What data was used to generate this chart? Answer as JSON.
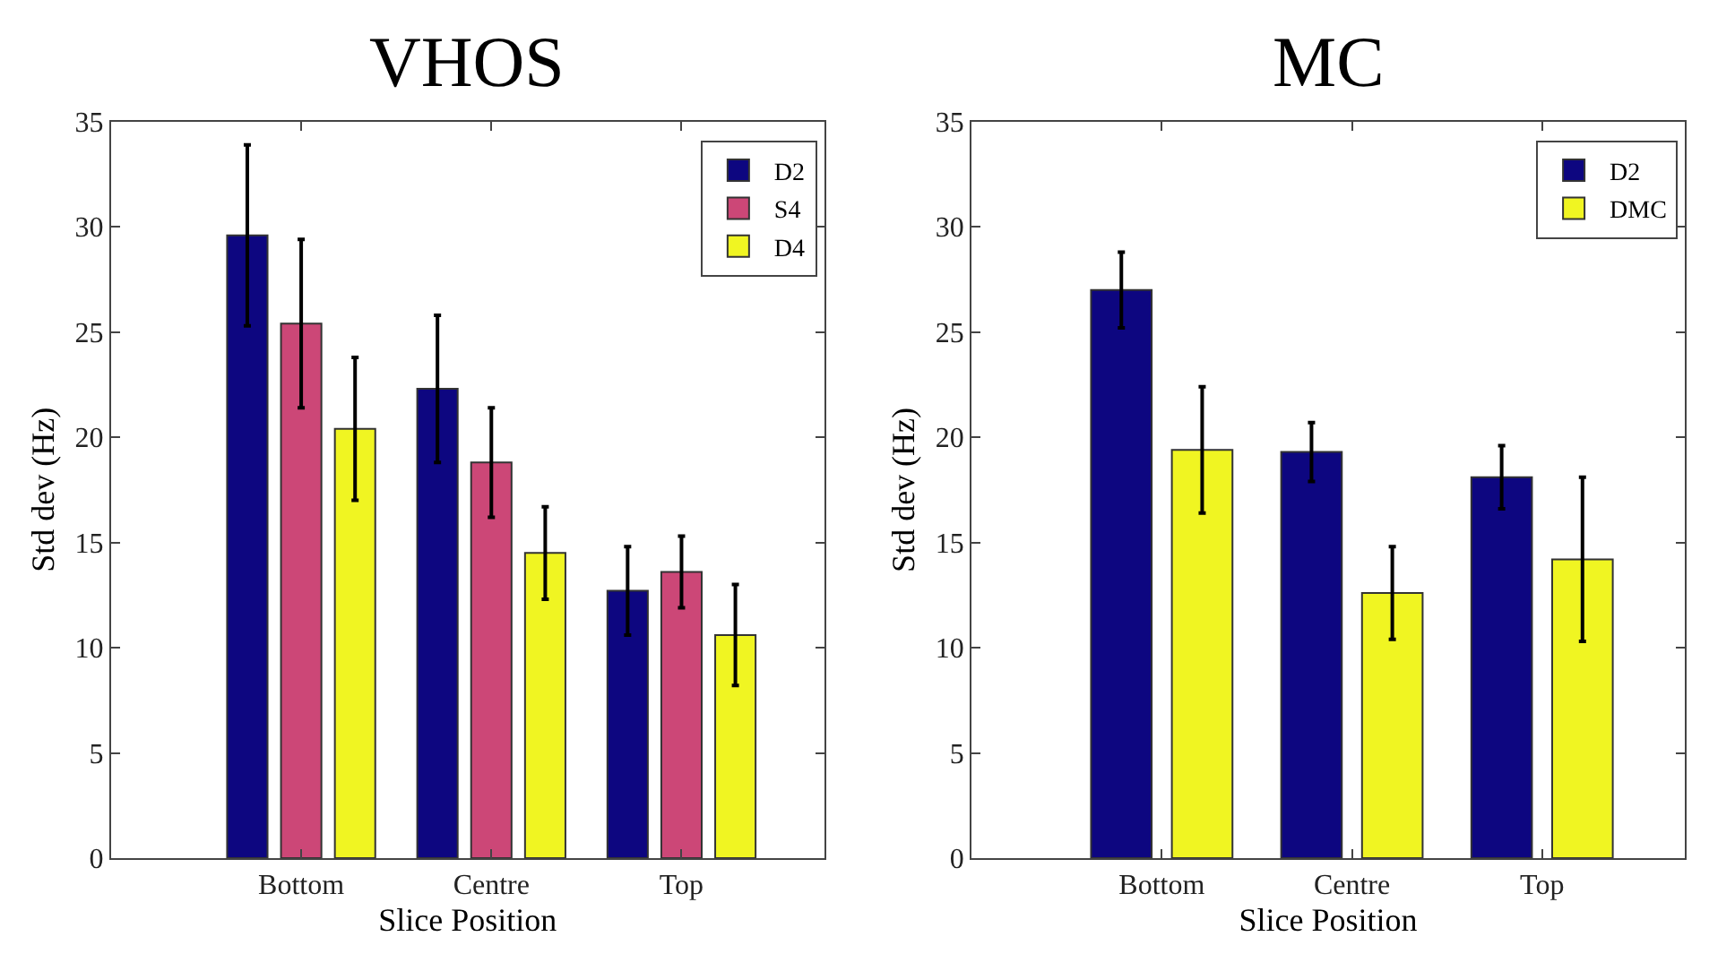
{
  "chart_data": [
    {
      "type": "bar",
      "title": "VHOS",
      "xlabel": "Slice Position",
      "ylabel": "Std dev (Hz)",
      "categories": [
        "Bottom",
        "Centre",
        "Top"
      ],
      "ylim": [
        0,
        35
      ],
      "yticks": [
        0,
        5,
        10,
        15,
        20,
        25,
        30,
        35
      ],
      "legend": "top right",
      "series": [
        {
          "name": "D2",
          "color": "#0d0680",
          "values": [
            29.6,
            22.3,
            12.7
          ],
          "errors": [
            4.3,
            3.5,
            2.1
          ]
        },
        {
          "name": "S4",
          "color": "#cc4777",
          "values": [
            25.4,
            18.8,
            13.6
          ],
          "errors": [
            4.0,
            2.6,
            1.7
          ]
        },
        {
          "name": "D4",
          "color": "#f0f522",
          "values": [
            20.4,
            14.5,
            10.6
          ],
          "errors": [
            3.4,
            2.2,
            2.4
          ]
        }
      ]
    },
    {
      "type": "bar",
      "title": "MC",
      "xlabel": "Slice Position",
      "ylabel": "Std dev (Hz)",
      "categories": [
        "Bottom",
        "Centre",
        "Top"
      ],
      "ylim": [
        0,
        35
      ],
      "yticks": [
        0,
        5,
        10,
        15,
        20,
        25,
        30,
        35
      ],
      "legend": "top right",
      "series": [
        {
          "name": "D2",
          "color": "#0d0680",
          "values": [
            27.0,
            19.3,
            18.1
          ],
          "errors": [
            1.8,
            1.4,
            1.5
          ]
        },
        {
          "name": "DMC",
          "color": "#f0f522",
          "values": [
            19.4,
            12.6,
            14.2
          ],
          "errors": [
            3.0,
            2.2,
            3.9
          ]
        }
      ]
    }
  ]
}
